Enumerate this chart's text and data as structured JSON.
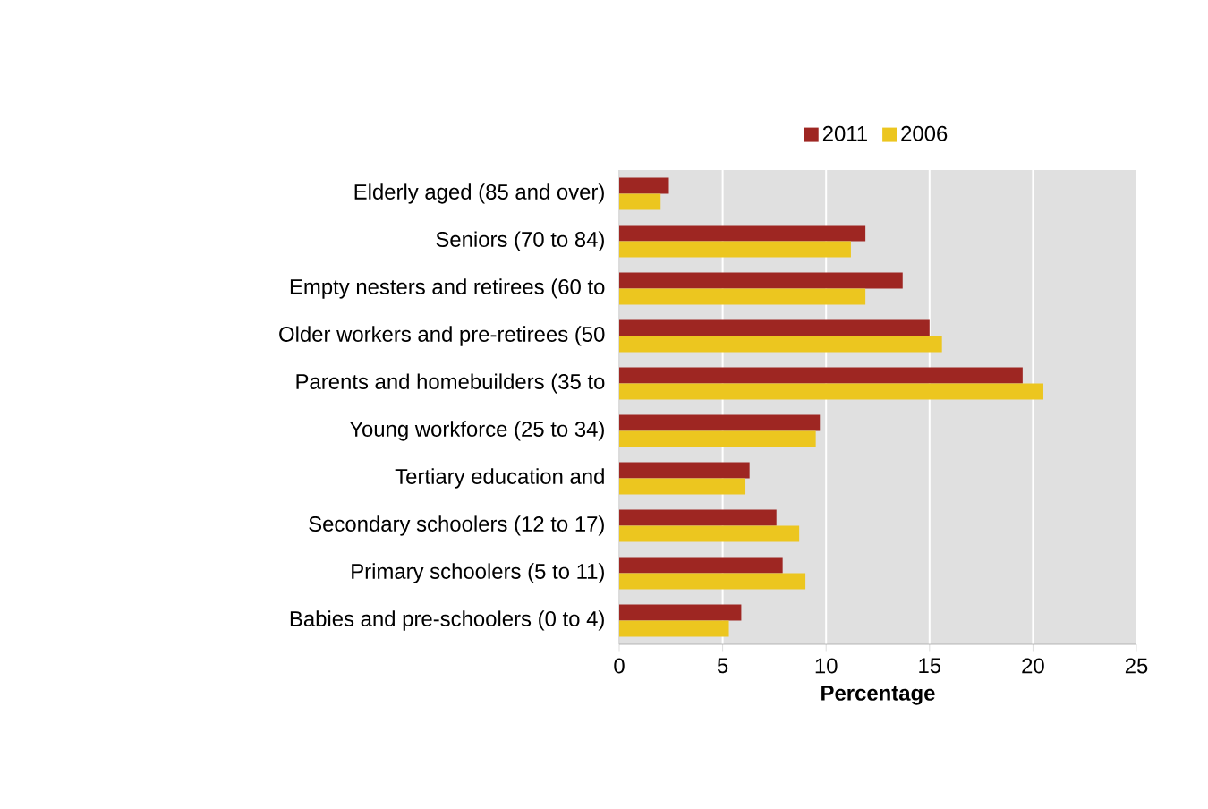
{
  "chart_data": {
    "type": "bar",
    "orientation": "horizontal",
    "xlabel": "Percentage",
    "categories": [
      "Elderly aged (85 and over)",
      "Seniors (70 to 84)",
      "Empty nesters and retirees (60 to",
      "Older workers and pre-retirees (50",
      "Parents and homebuilders (35 to",
      "Young workforce (25 to 34)",
      "Tertiary education and",
      "Secondary schoolers (12 to 17)",
      "Primary schoolers (5 to 11)",
      "Babies and pre-schoolers (0 to 4)"
    ],
    "series": [
      {
        "name": "2011",
        "color": "#9e2622",
        "values": [
          2.4,
          11.9,
          13.7,
          15.0,
          19.5,
          9.7,
          6.3,
          7.6,
          7.9,
          5.9
        ]
      },
      {
        "name": "2006",
        "color": "#ecc61f",
        "values": [
          2.0,
          11.2,
          11.9,
          15.6,
          20.5,
          9.5,
          6.1,
          8.7,
          9.0,
          5.3
        ]
      }
    ],
    "xlim": [
      0,
      25
    ],
    "xticks": [
      0,
      5,
      10,
      15,
      20,
      25
    ],
    "grid": "x",
    "legend": "top"
  }
}
